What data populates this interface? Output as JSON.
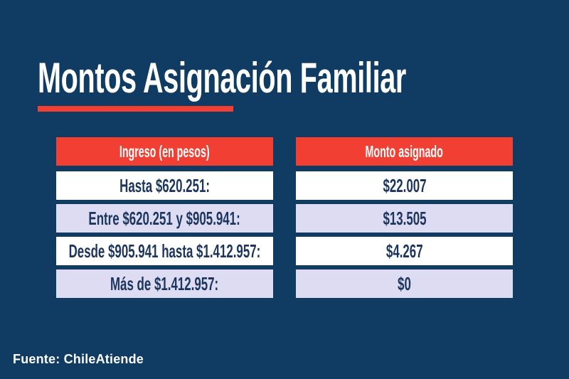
{
  "title": "Montos Asignación Familiar",
  "footer": {
    "source": "Fuente: ChileAtiende"
  },
  "colors": {
    "background_navy": "#103B62",
    "accent_red": "#F23F33",
    "row_lavender": "#DDDCF2",
    "row_white": "#FFFFFF",
    "text_navy": "#1B355E",
    "text_white": "#FFFFFF"
  },
  "chart_data": {
    "type": "table",
    "title": "Montos Asignación Familiar",
    "columns": [
      "Ingreso (en pesos)",
      "Monto asignado"
    ],
    "rows": [
      [
        "Hasta $620.251:",
        "$22.007"
      ],
      [
        "Entre $620.251 y $905.941:",
        "$13.505"
      ],
      [
        "Desde $905.941 hasta $1.412.957:",
        "$4.267"
      ],
      [
        "Más de $1.412.957:",
        "$0"
      ]
    ],
    "source": "Fuente: ChileAtiende",
    "layout": {
      "header_fill": "#F23F33",
      "row_alternation": [
        "white",
        "lavender",
        "white",
        "lavender"
      ],
      "columns_side_by_side": true
    }
  }
}
